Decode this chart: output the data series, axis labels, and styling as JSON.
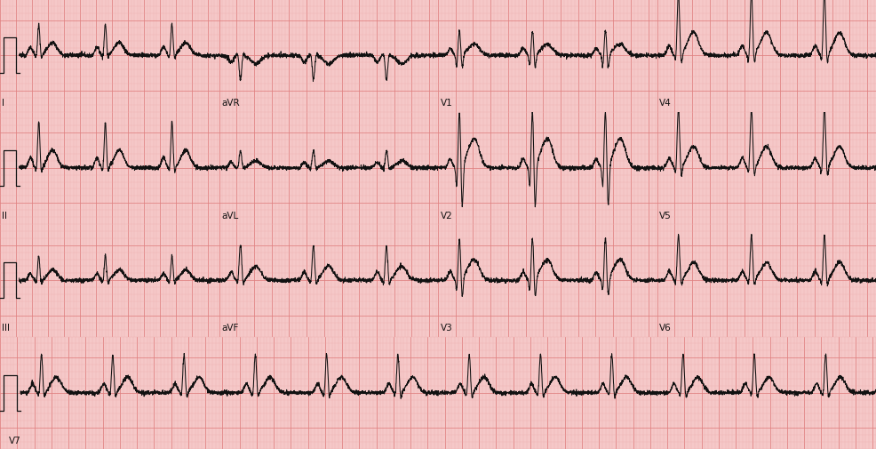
{
  "background_color": "#f5c8c8",
  "grid_major_color": "#e08080",
  "grid_minor_color": "#eeaaaa",
  "line_color": "#111111",
  "label_color": "#111111",
  "fig_width": 9.86,
  "fig_height": 5.06,
  "dpi": 100,
  "row_labels": [
    [
      "I",
      "aVR",
      "V1",
      "V4"
    ],
    [
      "II",
      "aVL",
      "V2",
      "V5"
    ],
    [
      "III",
      "aVF",
      "V3",
      "V6"
    ],
    [
      "V7",
      "",
      "",
      ""
    ]
  ],
  "heart_rate": 72,
  "fs": 500
}
